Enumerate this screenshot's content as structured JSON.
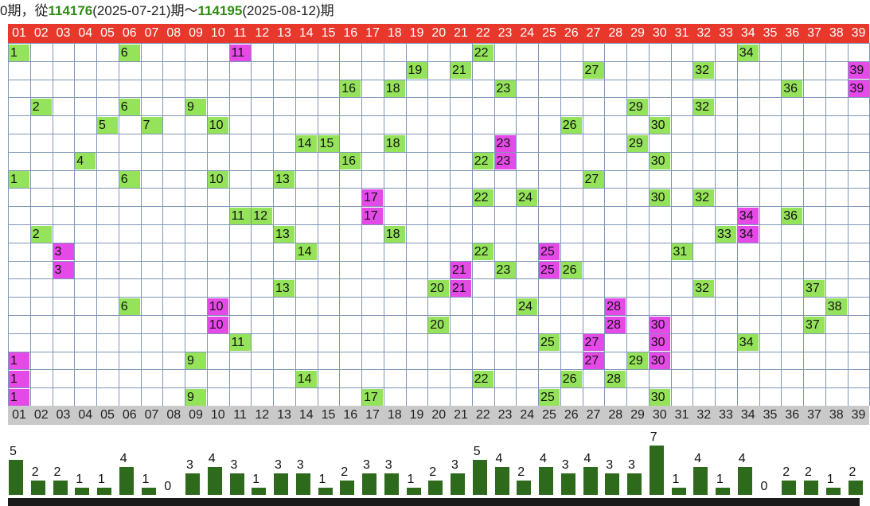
{
  "title": {
    "prefix": "0期，從",
    "start_period": "114176",
    "start_date": "(2025-07-21)期～",
    "end_period": "114195",
    "end_date": "(2025-08-12)期"
  },
  "columns": [
    "01",
    "02",
    "03",
    "04",
    "05",
    "06",
    "07",
    "08",
    "09",
    "10",
    "11",
    "12",
    "13",
    "14",
    "15",
    "16",
    "17",
    "18",
    "19",
    "20",
    "21",
    "22",
    "23",
    "24",
    "25",
    "26",
    "27",
    "28",
    "29",
    "30",
    "31",
    "32",
    "33",
    "34",
    "35",
    "36",
    "37",
    "38",
    "39"
  ],
  "rows": [
    {
      "green": [
        1,
        6,
        22,
        34
      ],
      "magenta": [
        11
      ]
    },
    {
      "green": [
        19,
        21,
        27,
        32
      ],
      "magenta": [
        39
      ]
    },
    {
      "green": [
        16,
        18,
        23,
        36
      ],
      "magenta": [
        39
      ]
    },
    {
      "green": [
        2,
        6,
        9,
        29,
        32
      ],
      "magenta": []
    },
    {
      "green": [
        5,
        7,
        10,
        26,
        30
      ],
      "magenta": []
    },
    {
      "green": [
        14,
        15,
        18,
        29
      ],
      "magenta": [
        23
      ]
    },
    {
      "green": [
        4,
        16,
        22,
        30
      ],
      "magenta": [
        23
      ]
    },
    {
      "green": [
        1,
        6,
        10,
        13,
        27
      ],
      "magenta": []
    },
    {
      "green": [
        22,
        24,
        30,
        32
      ],
      "magenta": [
        17
      ]
    },
    {
      "green": [
        11,
        12,
        36
      ],
      "magenta": [
        17,
        34
      ]
    },
    {
      "green": [
        2,
        13,
        18,
        33
      ],
      "magenta": [
        34
      ]
    },
    {
      "green": [
        14,
        22,
        31
      ],
      "magenta": [
        3,
        25
      ]
    },
    {
      "green": [
        23,
        26
      ],
      "magenta": [
        3,
        21,
        25
      ]
    },
    {
      "green": [
        13,
        20,
        32,
        37
      ],
      "magenta": [
        21
      ]
    },
    {
      "green": [
        6,
        24,
        38
      ],
      "magenta": [
        10,
        28
      ]
    },
    {
      "green": [
        20,
        37
      ],
      "magenta": [
        10,
        28,
        30
      ]
    },
    {
      "green": [
        11,
        25,
        34
      ],
      "magenta": [
        27,
        30
      ]
    },
    {
      "green": [
        9,
        29
      ],
      "magenta": [
        1,
        27,
        30
      ]
    },
    {
      "green": [
        14,
        22,
        26,
        28
      ],
      "magenta": [
        1
      ]
    },
    {
      "green": [
        9,
        17,
        25,
        30
      ],
      "magenta": [
        1
      ]
    }
  ],
  "counts": [
    5,
    2,
    2,
    1,
    1,
    4,
    1,
    0,
    3,
    4,
    3,
    1,
    3,
    3,
    1,
    2,
    3,
    3,
    1,
    2,
    3,
    5,
    4,
    2,
    4,
    3,
    4,
    3,
    3,
    7,
    1,
    4,
    1,
    4,
    0,
    2,
    2,
    1,
    2
  ],
  "colors": {
    "header_red": "#e8382c",
    "green_cell": "#95e35a",
    "magenta_cell": "#e54ae8",
    "bar_green": "#2e6a1c",
    "title_green": "#2f8a14"
  }
}
